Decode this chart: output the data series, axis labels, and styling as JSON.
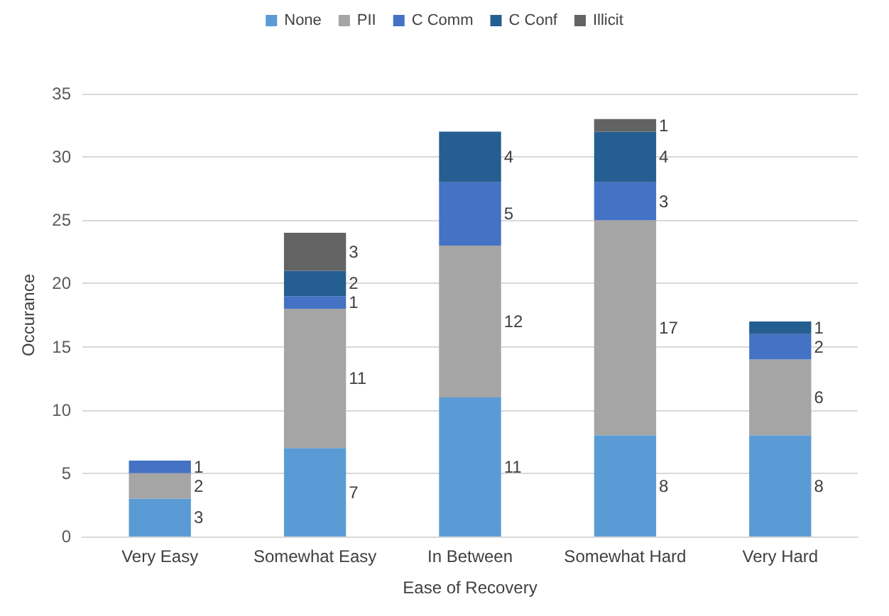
{
  "chart_data": {
    "type": "bar",
    "stacked": true,
    "xlabel": "Ease of Recovery",
    "ylabel": "Occurance",
    "categories": [
      "Very Easy",
      "Somewhat Easy",
      "In Between",
      "Somewhat Hard",
      "Very Hard"
    ],
    "series": [
      {
        "name": "None",
        "color": "#5b9bd5",
        "values": [
          3,
          7,
          11,
          8,
          8
        ],
        "value_labels": [
          "3",
          "7",
          "11",
          "8",
          "8"
        ]
      },
      {
        "name": "PII",
        "color": "#a5a5a5",
        "values": [
          2,
          11,
          12,
          17,
          6
        ],
        "value_labels": [
          "2",
          "11",
          "12",
          "17",
          "6"
        ]
      },
      {
        "name": "C Comm",
        "color": "#4472c4",
        "values": [
          1,
          1,
          5,
          3,
          2
        ],
        "value_labels": [
          "1",
          "1",
          "5",
          "3",
          "2"
        ]
      },
      {
        "name": "C Conf",
        "color": "#255e91",
        "values": [
          0,
          2,
          4,
          4,
          1
        ],
        "value_labels": [
          null,
          "2",
          "4",
          "4",
          "1"
        ]
      },
      {
        "name": "Illicit",
        "color": "#636363",
        "values": [
          0,
          3,
          0,
          1,
          0
        ],
        "value_labels": [
          null,
          "3",
          null,
          "1",
          null
        ]
      }
    ],
    "ylim": [
      0,
      35
    ],
    "yticks": [
      0,
      5,
      10,
      15,
      20,
      25,
      30,
      35
    ],
    "grid": "y",
    "legend": "top"
  }
}
